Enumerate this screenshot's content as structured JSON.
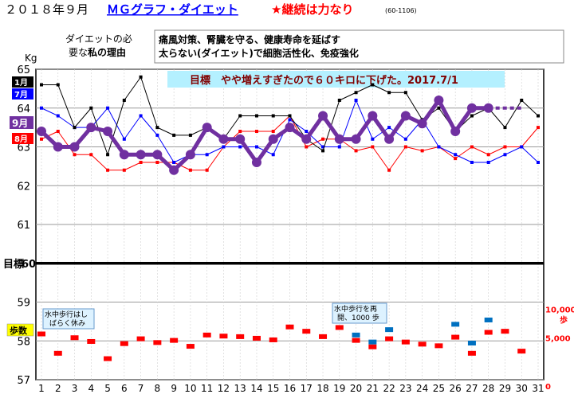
{
  "header": {
    "date_title": "２０１８年９月",
    "link_title": "ＭＧグラフ・ダイエット",
    "tagline": "★継続は力なり",
    "range_note": "(60-1106)"
  },
  "reason": {
    "label_line1": "ダイエットの必",
    "label_line2": "要な",
    "label_bold": "私の理由",
    "text_line1": "痛風対策、腎臓を守る、健康寿命を延ばす",
    "text_line2": "太らない(ダイエット)で細胞活性化、免疫強化"
  },
  "goal_banner": "目標　やや増えすぎたので６０キロに下げた。2017.7/1",
  "chart_data": {
    "type": "line",
    "x": [
      1,
      2,
      3,
      4,
      5,
      6,
      7,
      8,
      9,
      10,
      11,
      12,
      13,
      14,
      15,
      16,
      17,
      18,
      19,
      20,
      21,
      22,
      23,
      24,
      25,
      26,
      27,
      28,
      29,
      30,
      31
    ],
    "ylabel": "Kg",
    "ylim": [
      57,
      65
    ],
    "yticks": [
      57,
      58,
      59,
      60,
      61,
      62,
      63,
      64,
      65
    ],
    "target_value": 60,
    "target_label": "目標",
    "series": [
      {
        "name": "1月",
        "color": "#000000",
        "values": [
          64.6,
          64.6,
          63.5,
          64.0,
          62.8,
          64.2,
          64.8,
          63.5,
          63.3,
          63.3,
          63.5,
          63.2,
          63.8,
          63.8,
          63.8,
          63.8,
          63.2,
          62.9,
          64.2,
          64.4,
          64.6,
          64.4,
          64.4,
          63.7,
          64.0,
          63.4,
          63.8,
          64.0,
          63.5,
          64.2,
          63.8
        ]
      },
      {
        "name": "7月",
        "color": "#0000ff",
        "values": [
          64.0,
          63.8,
          63.5,
          63.5,
          64.0,
          63.2,
          63.8,
          63.3,
          62.6,
          62.8,
          62.8,
          63.0,
          63.0,
          63.0,
          62.8,
          63.7,
          63.4,
          63.0,
          63.0,
          64.2,
          63.2,
          63.5,
          63.2,
          63.7,
          63.0,
          62.8,
          62.6,
          62.6,
          62.8,
          63.0,
          62.6
        ]
      },
      {
        "name": "8月",
        "color": "#ff0000",
        "values": [
          63.2,
          63.4,
          62.8,
          62.8,
          62.4,
          62.4,
          62.6,
          62.6,
          62.6,
          62.4,
          62.4,
          63.0,
          63.4,
          63.4,
          63.4,
          63.8,
          63.0,
          63.2,
          63.2,
          62.9,
          63.0,
          62.4,
          63.0,
          62.9,
          63.0,
          62.7,
          63.0,
          62.8,
          63.0,
          63.0,
          63.5
        ]
      },
      {
        "name": "9月",
        "color": "#7030a0",
        "bold": true,
        "values": [
          63.4,
          63.0,
          63.0,
          63.5,
          63.4,
          62.8,
          62.8,
          62.8,
          62.4,
          62.8,
          63.5,
          63.2,
          63.2,
          62.6,
          63.2,
          63.5,
          63.2,
          63.8,
          63.2,
          63.2,
          63.8,
          63.2,
          63.8,
          63.6,
          64.2,
          63.4,
          64.0,
          64.0,
          null,
          null,
          null
        ],
        "projection_values": [
          null,
          null,
          null,
          null,
          null,
          null,
          null,
          null,
          null,
          null,
          null,
          null,
          null,
          null,
          null,
          null,
          null,
          null,
          null,
          null,
          null,
          null,
          null,
          null,
          null,
          null,
          null,
          64.0,
          64.0,
          64.0,
          null
        ]
      }
    ],
    "steps": {
      "label": "歩数",
      "axis_labels": [
        "10,000\n歩",
        "5,000",
        "0"
      ],
      "axis_max": 12000,
      "red": [
        5700,
        2100,
        5000,
        4300,
        1100,
        3900,
        4800,
        4100,
        4500,
        3400,
        5500,
        5300,
        5200,
        4900,
        4600,
        7000,
        6200,
        5200,
        6900,
        4500,
        3300,
        4800,
        4200,
        3800,
        3500,
        5100,
        2100,
        6000,
        6200,
        2500,
        null
      ],
      "blue": [
        null,
        null,
        null,
        null,
        null,
        null,
        null,
        null,
        null,
        null,
        null,
        null,
        null,
        null,
        null,
        null,
        null,
        null,
        null,
        5500,
        4200,
        6500,
        null,
        null,
        null,
        7500,
        4000,
        8300,
        null,
        null,
        null
      ]
    },
    "notes": [
      {
        "text": "水中歩行はしばらく休み"
      },
      {
        "text": "水中歩行を再開、1000歩"
      }
    ]
  },
  "colors": {
    "banner_bg": "#b4f0ff",
    "banner_text": "#800000",
    "plot_border": "#000000",
    "grid": "#c8c8c8",
    "label_1_bg": "#000000",
    "label_7_bg": "#0000ff",
    "label_8_bg": "#ff0000",
    "label_9_bg": "#7030a0",
    "steps_label_bg": "#ffff00"
  }
}
